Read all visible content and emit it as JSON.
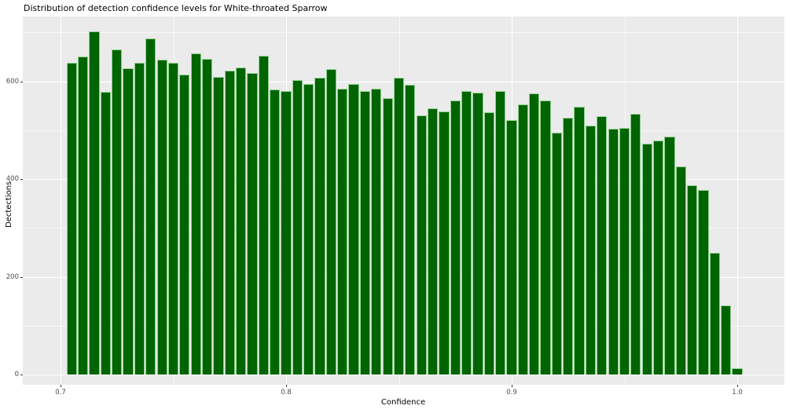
{
  "chart_data": {
    "type": "bar",
    "subtype": "histogram",
    "title": "Distribution of detection confidence levels for White-throated Sparrow",
    "xlabel": "Confidence",
    "ylabel": "Dectections",
    "legend": "none",
    "grid": "on",
    "panel_bg": "#ebebeb",
    "grid_color": "#ffffff",
    "bar_fill": "#006400",
    "bar_stroke": "#8fcd8f",
    "tick_label_color": "#4d4d4d",
    "xlim": [
      0.683,
      1.021
    ],
    "ylim": [
      0,
      732
    ],
    "x_major_ticks": [
      0.7,
      0.8,
      0.9,
      1.0
    ],
    "x_tick_labels": [
      "0.7",
      "0.8",
      "0.9",
      "1.0"
    ],
    "x_minor_ticks": [
      0.75,
      0.85,
      0.95
    ],
    "y_major_ticks": [
      0,
      200,
      400,
      600
    ],
    "y_tick_labels": [
      "0",
      "200",
      "400",
      "600"
    ],
    "y_minor_ticks": [
      100,
      300,
      500,
      700
    ],
    "bin_width": 0.005,
    "bin_start": 0.7025,
    "bin_centers": [
      0.705,
      0.71,
      0.715,
      0.72,
      0.725,
      0.73,
      0.735,
      0.74,
      0.745,
      0.75,
      0.755,
      0.76,
      0.765,
      0.77,
      0.775,
      0.78,
      0.785,
      0.79,
      0.795,
      0.8,
      0.805,
      0.81,
      0.815,
      0.82,
      0.825,
      0.83,
      0.835,
      0.84,
      0.845,
      0.85,
      0.855,
      0.86,
      0.865,
      0.87,
      0.875,
      0.88,
      0.885,
      0.89,
      0.895,
      0.9,
      0.905,
      0.91,
      0.915,
      0.92,
      0.925,
      0.93,
      0.935,
      0.94,
      0.945,
      0.95,
      0.955,
      0.96,
      0.965,
      0.97,
      0.975,
      0.98,
      0.985,
      0.99,
      0.995,
      1.0
    ],
    "values": [
      638,
      650,
      702,
      579,
      665,
      627,
      638,
      688,
      644,
      638,
      614,
      657,
      645,
      609,
      621,
      628,
      617,
      653,
      583,
      580,
      602,
      595,
      607,
      625,
      585,
      595,
      580,
      585,
      565,
      607,
      592,
      530,
      545,
      538,
      560,
      580,
      576,
      536,
      580,
      520,
      552,
      575,
      560,
      495,
      526,
      548,
      510,
      529,
      503,
      505,
      534,
      472,
      478,
      487,
      426,
      387,
      378,
      249,
      142,
      13
    ]
  }
}
